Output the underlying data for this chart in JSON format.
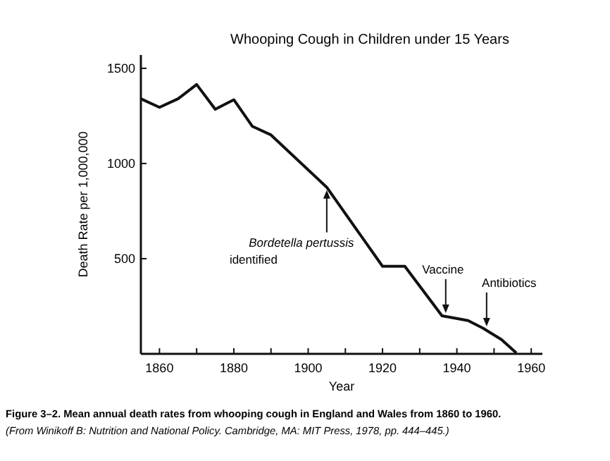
{
  "chart_data": {
    "type": "line",
    "title": "Whooping Cough in Children under 15 Years",
    "xlabel": "Year",
    "ylabel": "Death Rate per 1,000,000",
    "x": [
      1855,
      1860,
      1865,
      1870,
      1875,
      1880,
      1885,
      1890,
      1905,
      1920,
      1926,
      1936,
      1943,
      1947,
      1952,
      1956
    ],
    "series": [
      {
        "color": "#111111",
        "values": [
          1340,
          1295,
          1340,
          1415,
          1285,
          1335,
          1195,
          1150,
          875,
          460,
          460,
          200,
          175,
          135,
          75,
          5
        ]
      }
    ],
    "xlim": [
      1855,
      1963
    ],
    "ylim": [
      0,
      1570
    ],
    "xticks": [
      1860,
      {
        "value": 1870,
        "label": null
      },
      1880,
      {
        "value": 1890,
        "label": null
      },
      1900,
      {
        "value": 1910,
        "label": null
      },
      1920,
      {
        "value": 1930,
        "label": null
      },
      1940,
      {
        "value": 1950,
        "label": null
      },
      1960
    ],
    "yticks": [
      500,
      1000,
      1500
    ],
    "marker": "none",
    "line_style": "solid",
    "grid": false,
    "annotations": [
      {
        "text": "Bordetella pertussis identified",
        "x": 1905,
        "y": 875
      },
      {
        "text": "Vaccine",
        "x": 1937,
        "y": 200
      },
      {
        "text": "Antibiotics",
        "x": 1948,
        "y": 130
      },
      "Figure 3–2.  Mean annual death rates from whooping cough in England and Wales from 1860 to 1960.",
      "(From Winikoff B: Nutrition and National Policy. Cambridge, MA: MIT Press, 1978, pp. 444–445.)"
    ]
  }
}
